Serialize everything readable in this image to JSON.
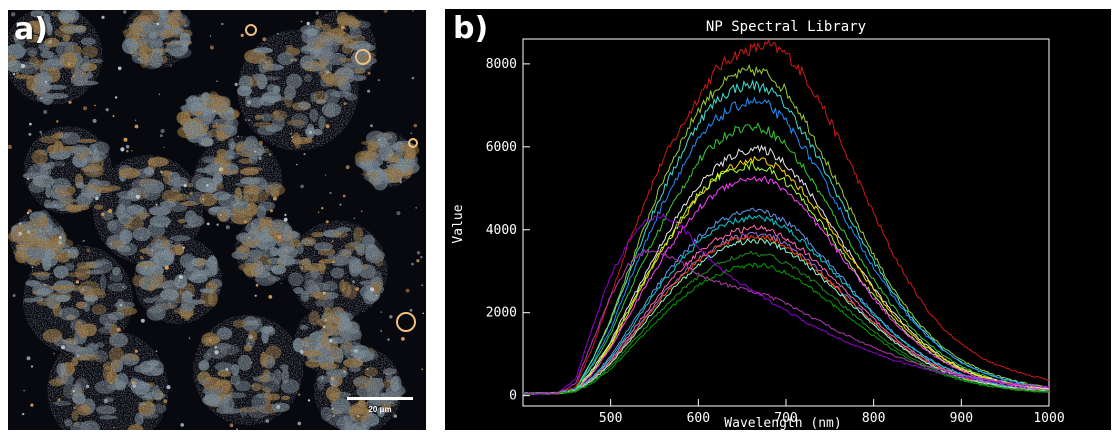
{
  "panel_a": {
    "letter": "a)",
    "scale_bar_label": "20 μm",
    "colors": {
      "background": "#08080f",
      "cluster_blue": "#6f7f8a",
      "cluster_brown": "#8a6a3a"
    }
  },
  "panel_b": {
    "letter": "b)"
  },
  "chart_data": {
    "type": "line",
    "title": "NP Spectral Library",
    "xlabel": "Wavelength (nm)",
    "ylabel": "Value",
    "xlim": [
      400,
      1000
    ],
    "ylim": [
      -250,
      8600
    ],
    "xticks": [
      500,
      600,
      700,
      800,
      900,
      1000
    ],
    "yticks": [
      0,
      2000,
      4000,
      6000,
      8000
    ],
    "grid": false,
    "background": "#000000",
    "axis_color": "#ffffff",
    "x": [
      400,
      440,
      460,
      480,
      500,
      520,
      540,
      560,
      580,
      600,
      620,
      640,
      660,
      680,
      700,
      720,
      740,
      760,
      780,
      800,
      820,
      840,
      860,
      880,
      900,
      920,
      940,
      960,
      980,
      1000
    ],
    "series": [
      {
        "color": "#d01818",
        "values": [
          50,
          60,
          200,
          1200,
          2400,
          3650,
          4750,
          5700,
          6450,
          7200,
          7850,
          8200,
          8350,
          8450,
          8250,
          7750,
          7050,
          6200,
          5300,
          4400,
          3500,
          2750,
          2100,
          1600,
          1250,
          950,
          750,
          600,
          480,
          380
        ]
      },
      {
        "color": "#9acd32",
        "values": [
          50,
          60,
          150,
          900,
          1850,
          3000,
          4150,
          5200,
          6100,
          6900,
          7400,
          7700,
          7850,
          7750,
          7350,
          6700,
          5900,
          5050,
          4200,
          3400,
          2650,
          2050,
          1550,
          1150,
          850,
          650,
          480,
          360,
          260,
          190
        ]
      },
      {
        "color": "#40e0d0",
        "values": [
          50,
          60,
          150,
          900,
          1800,
          2900,
          4000,
          4950,
          5800,
          6600,
          7100,
          7400,
          7500,
          7400,
          7000,
          6350,
          5600,
          4800,
          4000,
          3250,
          2550,
          1950,
          1500,
          1100,
          800,
          600,
          450,
          340,
          250,
          180
        ]
      },
      {
        "color": "#1e90ff",
        "values": [
          50,
          60,
          150,
          800,
          1600,
          2700,
          3700,
          4650,
          5450,
          6150,
          6650,
          6950,
          7100,
          7000,
          6600,
          6000,
          5300,
          4550,
          3800,
          3100,
          2450,
          1900,
          1450,
          1080,
          800,
          590,
          440,
          330,
          240,
          170
        ]
      },
      {
        "color": "#32cd32",
        "values": [
          50,
          60,
          150,
          750,
          1500,
          2450,
          3350,
          4200,
          4950,
          5650,
          6100,
          6400,
          6500,
          6400,
          6050,
          5500,
          4850,
          4150,
          3450,
          2800,
          2200,
          1700,
          1300,
          960,
          700,
          520,
          390,
          290,
          220,
          160
        ]
      },
      {
        "color": "#e8e8e8",
        "values": [
          50,
          60,
          120,
          650,
          1300,
          2150,
          2950,
          3750,
          4450,
          5050,
          5500,
          5800,
          5950,
          5900,
          5600,
          5100,
          4500,
          3850,
          3200,
          2600,
          2050,
          1600,
          1220,
          900,
          660,
          490,
          370,
          280,
          210,
          150
        ]
      },
      {
        "color": "#ffd700",
        "values": [
          50,
          60,
          120,
          600,
          1200,
          2000,
          2800,
          3550,
          4200,
          4800,
          5250,
          5550,
          5700,
          5650,
          5350,
          4900,
          4350,
          3750,
          3150,
          2550,
          2000,
          1550,
          1180,
          880,
          650,
          480,
          360,
          270,
          200,
          150
        ]
      },
      {
        "color": "#adff2f",
        "values": [
          50,
          60,
          120,
          600,
          1250,
          2050,
          2850,
          3600,
          4250,
          4850,
          5250,
          5450,
          5550,
          5450,
          5150,
          4700,
          4150,
          3550,
          2950,
          2400,
          1900,
          1470,
          1120,
          840,
          620,
          460,
          340,
          260,
          190,
          140
        ]
      },
      {
        "color": "#ff40ff",
        "values": [
          50,
          60,
          120,
          550,
          1150,
          1900,
          2650,
          3350,
          3950,
          4500,
          4900,
          5150,
          5250,
          5200,
          4950,
          4500,
          4000,
          3450,
          2900,
          2350,
          1850,
          1430,
          1090,
          810,
          600,
          440,
          330,
          250,
          180,
          130
        ]
      },
      {
        "color": "#6495ed",
        "values": [
          50,
          60,
          120,
          450,
          950,
          1600,
          2250,
          2850,
          3350,
          3800,
          4150,
          4350,
          4450,
          4400,
          4200,
          3850,
          3400,
          2950,
          2450,
          2000,
          1580,
          1220,
          930,
          700,
          520,
          380,
          280,
          210,
          160,
          120
        ]
      },
      {
        "color": "#00ced1",
        "values": [
          50,
          60,
          120,
          450,
          900,
          1500,
          2150,
          2750,
          3250,
          3700,
          4000,
          4200,
          4300,
          4250,
          4050,
          3700,
          3300,
          2850,
          2400,
          1960,
          1550,
          1200,
          910,
          680,
          500,
          370,
          270,
          200,
          150,
          110
        ]
      },
      {
        "color": "#ff69b4",
        "values": [
          50,
          60,
          110,
          420,
          850,
          1420,
          2000,
          2550,
          3050,
          3450,
          3750,
          3950,
          4050,
          4000,
          3800,
          3500,
          3100,
          2700,
          2270,
          1850,
          1460,
          1130,
          860,
          640,
          470,
          350,
          260,
          190,
          140,
          100
        ]
      },
      {
        "color": "#9370db",
        "values": [
          50,
          60,
          110,
          400,
          800,
          1350,
          1900,
          2450,
          2900,
          3300,
          3600,
          3800,
          3900,
          3850,
          3650,
          3350,
          2970,
          2580,
          2170,
          1770,
          1400,
          1080,
          820,
          610,
          450,
          330,
          250,
          180,
          130,
          100
        ]
      },
      {
        "color": "#ff4500",
        "values": [
          50,
          60,
          110,
          400,
          800,
          1320,
          1850,
          2400,
          2850,
          3250,
          3550,
          3750,
          3850,
          3800,
          3600,
          3300,
          2930,
          2540,
          2140,
          1750,
          1380,
          1070,
          810,
          600,
          440,
          330,
          240,
          180,
          130,
          100
        ]
      },
      {
        "color": "#7fffd4",
        "values": [
          50,
          60,
          110,
          380,
          760,
          1280,
          1800,
          2320,
          2760,
          3150,
          3450,
          3650,
          3750,
          3700,
          3500,
          3220,
          2860,
          2480,
          2090,
          1710,
          1350,
          1040,
          790,
          590,
          430,
          320,
          240,
          180,
          130,
          100
        ]
      },
      {
        "color": "#228b22",
        "values": [
          50,
          60,
          100,
          350,
          700,
          1180,
          1650,
          2120,
          2520,
          2870,
          3150,
          3330,
          3420,
          3380,
          3200,
          2940,
          2610,
          2260,
          1900,
          1560,
          1230,
          950,
          720,
          540,
          400,
          290,
          220,
          160,
          120,
          90
        ]
      },
      {
        "color": "#00a000",
        "values": [
          50,
          60,
          100,
          320,
          640,
          1080,
          1520,
          1950,
          2330,
          2650,
          2900,
          3070,
          3150,
          3120,
          2960,
          2720,
          2410,
          2090,
          1760,
          1440,
          1140,
          880,
          670,
          500,
          370,
          270,
          200,
          150,
          110,
          80
        ]
      },
      {
        "color": "#9400d3",
        "values": [
          50,
          60,
          400,
          1700,
          2900,
          3700,
          4200,
          4350,
          4100,
          3600,
          3150,
          2800,
          2550,
          2300,
          2050,
          1800,
          1580,
          1380,
          1200,
          1030,
          880,
          750,
          640,
          540,
          460,
          390,
          330,
          280,
          240,
          200
        ]
      },
      {
        "color": "#b03ab0",
        "values": [
          50,
          60,
          300,
          1350,
          2400,
          3150,
          3500,
          3450,
          3200,
          2950,
          2750,
          2620,
          2520,
          2400,
          2220,
          2000,
          1770,
          1550,
          1350,
          1160,
          990,
          840,
          710,
          600,
          500,
          420,
          350,
          290,
          240,
          200
        ]
      }
    ]
  }
}
